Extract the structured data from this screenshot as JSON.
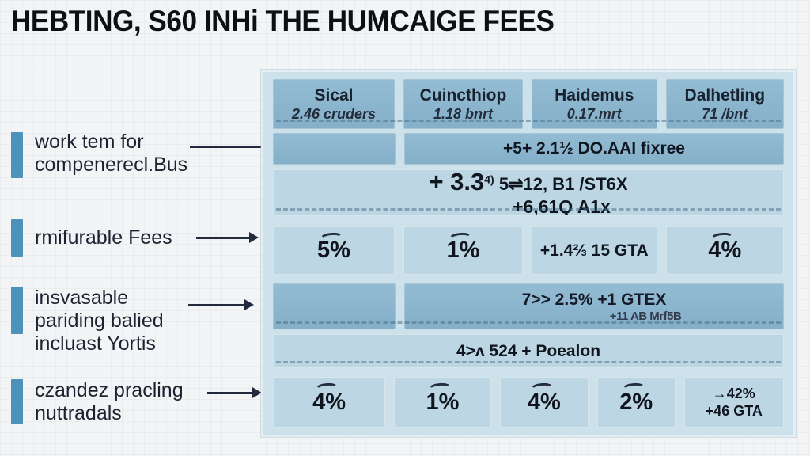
{
  "page": {
    "title": "HEBTING, S60 INHi THE HUMCAIGE FEES"
  },
  "colors": {
    "accent_bar": "#4c92ba",
    "cell_dark": "#8ab5ce",
    "cell_light": "#bdd6e3",
    "panel_bg": "#cde1eb",
    "text": "#151b26"
  },
  "labels": [
    {
      "line1": "work tem for",
      "line2": "compenerecl.Bus"
    },
    {
      "line1": "rmifurable Fees"
    },
    {
      "line1": "insvasable",
      "line2": "pariding balied",
      "line3": "incluast Yortis"
    },
    {
      "line1": "czandez pracling",
      "line2": "nuttradals"
    }
  ],
  "table": {
    "header": [
      {
        "name": "Sical",
        "sub": "2.46 cruders"
      },
      {
        "name": "Cuincthiop",
        "sub": "1.18 bnrt"
      },
      {
        "name": "Haidemus",
        "sub": "0.17.mrt"
      },
      {
        "name": "Dalhetling",
        "sub": "71 /bnt"
      }
    ],
    "row1": {
      "text": "+5+ 2.1½ DO.AAI fixree"
    },
    "row2": {
      "big": "+ 3.3",
      "sup": "4)",
      "rest": " 5⇌12, B1 /ST6X",
      "line2": "+6,61Q A1x"
    },
    "row3": {
      "c1": "5%",
      "c2": "1%",
      "c3": "+1.4⅔ 15 GTA",
      "c4": "4%"
    },
    "row4": {
      "line1": "7>> 2.5% +1 GTEX",
      "line2": "+11 AB Mrf5B"
    },
    "row5": {
      "text": "4>ʌ 524 + Poealon"
    },
    "row6": {
      "c1": "4%",
      "c2": "1%",
      "c3": "4%",
      "c4": "2%",
      "c5_line1": "→42%",
      "c5_line2": "+46 GTA"
    }
  }
}
